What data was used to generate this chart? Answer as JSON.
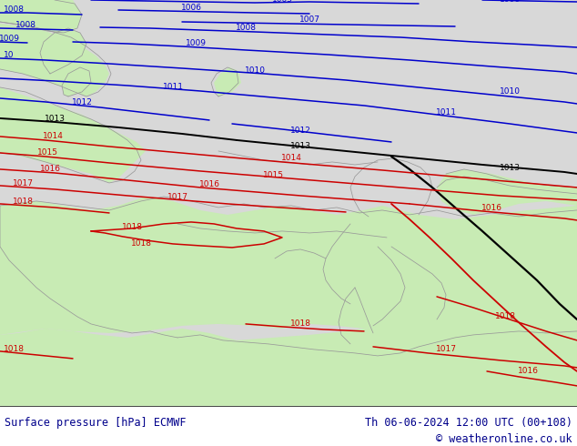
{
  "title_left": "Surface pressure [hPa] ECMWF",
  "title_right": "Th 06-06-2024 12:00 UTC (00+108)",
  "copyright": "© weatheronline.co.uk",
  "land_color": "#c8ebb4",
  "sea_color": "#d8d8d8",
  "border_color": "#999999",
  "blue": "#0000cc",
  "red": "#cc0000",
  "black": "#000000",
  "figsize": [
    6.34,
    4.9
  ],
  "dpi": 100,
  "bottom_text_color": "#00008b",
  "isobar_lw": 1.1
}
